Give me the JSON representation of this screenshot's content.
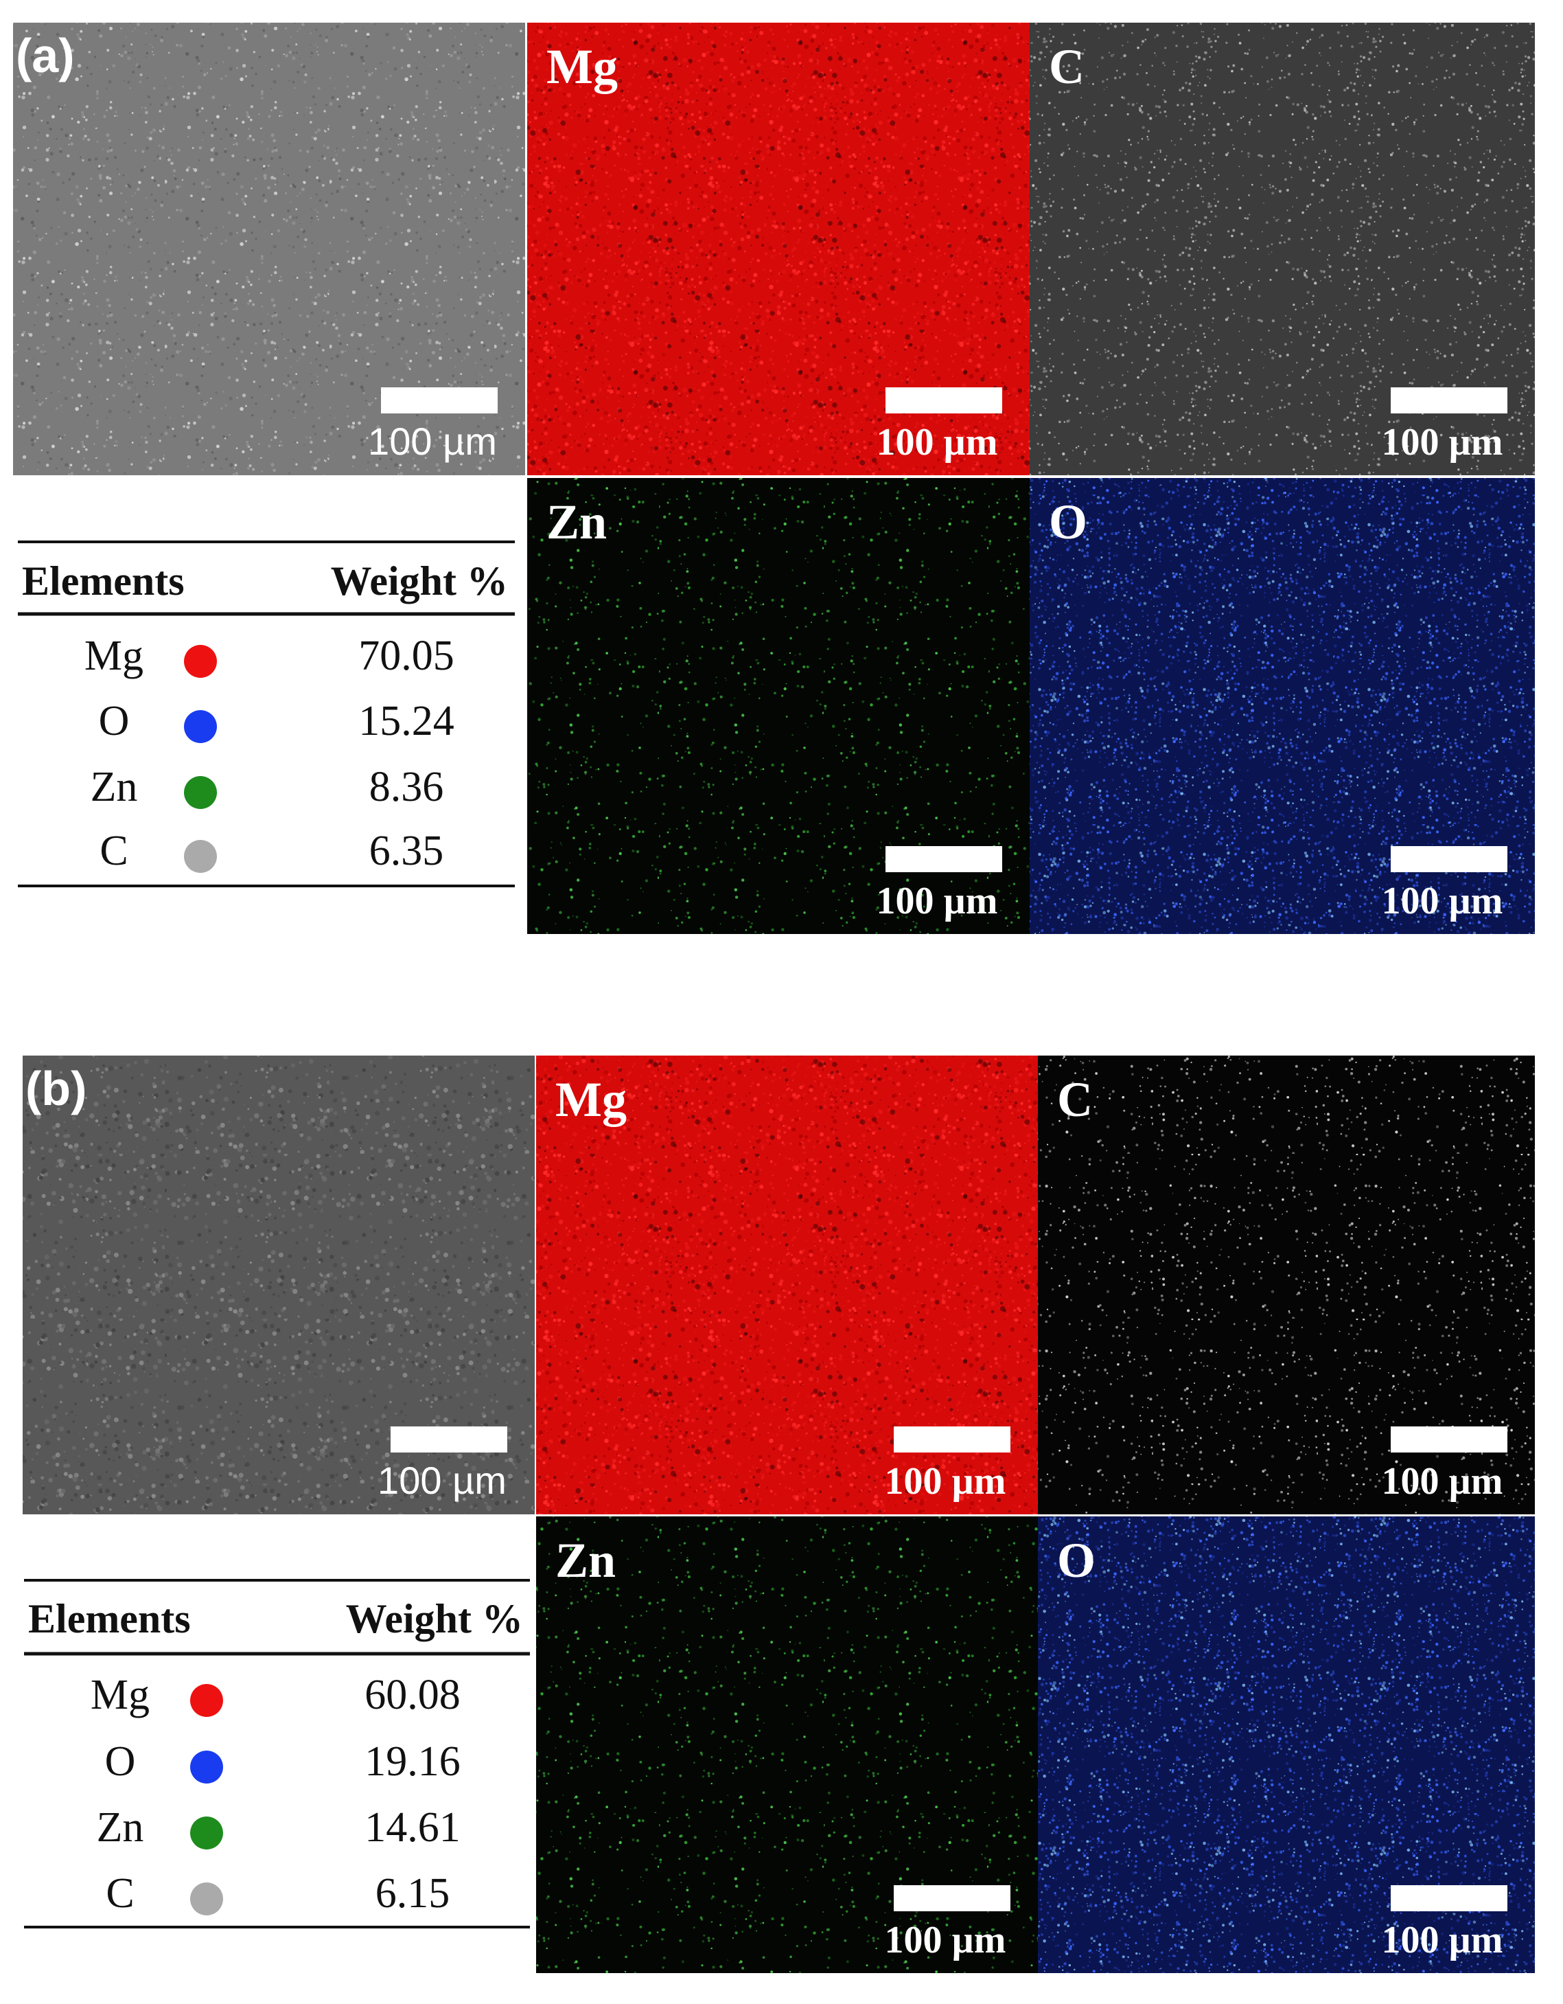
{
  "panels": [
    {
      "label": "(a)",
      "sem_scale": "100 µm",
      "maps": [
        {
          "element": "Mg",
          "scale": "100 µm"
        },
        {
          "element": "C",
          "scale": "100 µm"
        },
        {
          "element": "Zn",
          "scale": "100 µm"
        },
        {
          "element": "O",
          "scale": "100 µm"
        }
      ],
      "table": {
        "columns": [
          "Elements",
          "Weight %"
        ],
        "rows": [
          [
            "Mg",
            "70.05"
          ],
          [
            "O",
            "15.24"
          ],
          [
            "Zn",
            "8.36"
          ],
          [
            "C",
            "6.35"
          ]
        ]
      }
    },
    {
      "label": "(b)",
      "sem_scale": "100 µm",
      "maps": [
        {
          "element": "Mg",
          "scale": "100 µm"
        },
        {
          "element": "C",
          "scale": "100 µm"
        },
        {
          "element": "Zn",
          "scale": "100 µm"
        },
        {
          "element": "O",
          "scale": "100 µm"
        }
      ],
      "table": {
        "columns": [
          "Elements",
          "Weight %"
        ],
        "rows": [
          [
            "Mg",
            "60.08"
          ],
          [
            "O",
            "19.16"
          ],
          [
            "Zn",
            "14.61"
          ],
          [
            "C",
            "6.15"
          ]
        ]
      }
    }
  ]
}
